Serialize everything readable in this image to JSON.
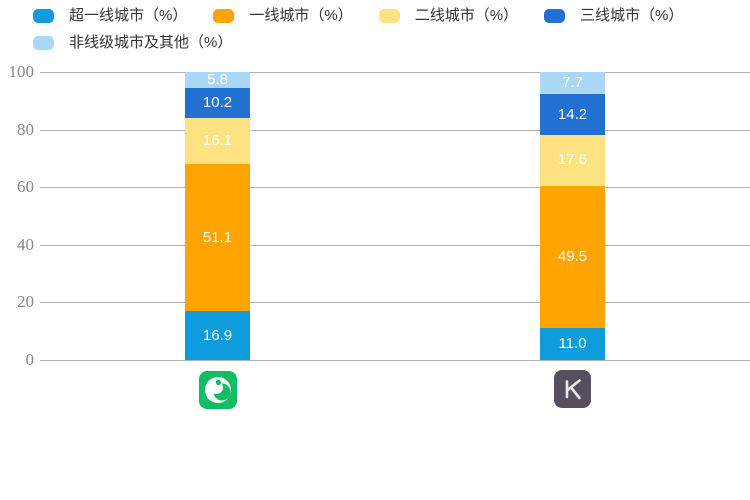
{
  "page": {
    "background": "#ffffff"
  },
  "chart_data": {
    "type": "bar",
    "stacked": true,
    "orientation": "vertical",
    "title": "",
    "xlabel": "",
    "ylabel": "",
    "ylim": [
      0,
      100
    ],
    "y_interval": 20,
    "y_ticks": [
      "0",
      "20",
      "40",
      "60",
      "80",
      "100"
    ],
    "grid": true,
    "grid_color": "#b3b3b3",
    "axis_text_color": "#888888",
    "value_label_color": "#ffffff",
    "legend_position": "top-left",
    "categories": [
      {
        "icon": "iqiyi-app-icon",
        "icon_color": "#12BE63"
      },
      {
        "icon": "kuaishou-app-icon",
        "icon_color": "#56505E"
      }
    ],
    "series": [
      {
        "name": "超一线城市（%）",
        "color": "#0E9CDC",
        "values": [
          16.9,
          11.0
        ]
      },
      {
        "name": "一线城市（%）",
        "color": "#FFA400",
        "values": [
          51.1,
          49.5
        ]
      },
      {
        "name": "二线城市（%）",
        "color": "#FFE382",
        "values": [
          16.1,
          17.6
        ]
      },
      {
        "name": "三线城市（%）",
        "color": "#2071D2",
        "values": [
          10.2,
          14.2
        ]
      },
      {
        "name": "非线级城市及其他（%）",
        "color": "#A9D7F5",
        "values": [
          5.8,
          7.7
        ]
      }
    ]
  }
}
